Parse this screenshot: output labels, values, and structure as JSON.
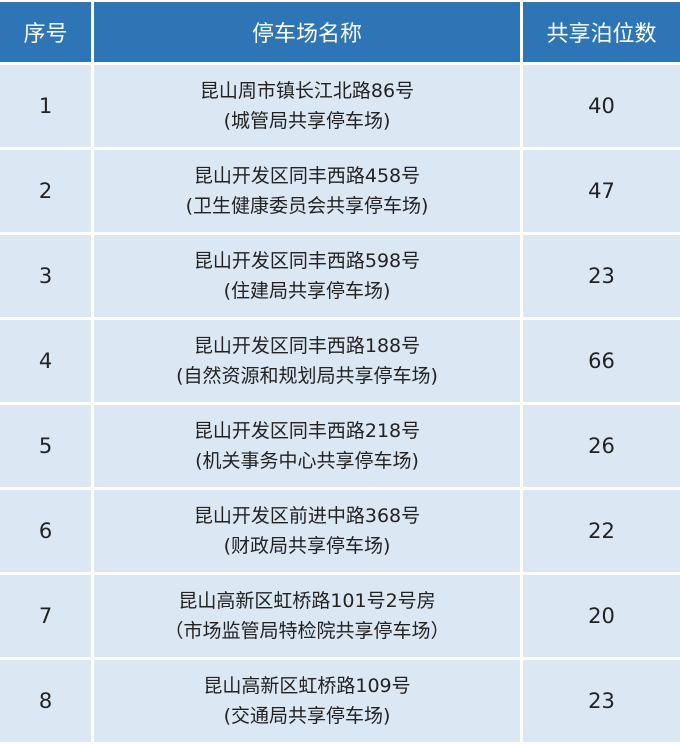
{
  "header": {
    "index": "序号",
    "name": "停车场名称",
    "spaces": "共享泊位数"
  },
  "rows": [
    {
      "index": "1",
      "address": "昆山周市镇长江北路86号",
      "facility": "(城管局共享停车场)",
      "spaces": "40"
    },
    {
      "index": "2",
      "address": "昆山开发区同丰西路458号",
      "facility": "(卫生健康委员会共享停车场)",
      "spaces": "47"
    },
    {
      "index": "3",
      "address": "昆山开发区同丰西路598号",
      "facility": "(住建局共享停车场)",
      "spaces": "23"
    },
    {
      "index": "4",
      "address": "昆山开发区同丰西路188号",
      "facility": "(自然资源和规划局共享停车场)",
      "spaces": "66"
    },
    {
      "index": "5",
      "address": "昆山开发区同丰西路218号",
      "facility": "(机关事务中心共享停车场)",
      "spaces": "26"
    },
    {
      "index": "6",
      "address": "昆山开发区前进中路368号",
      "facility": "(财政局共享停车场)",
      "spaces": "22"
    },
    {
      "index": "7",
      "address": "昆山高新区虹桥路101号2号房",
      "facility": "（市场监管局特检院共享停车场）",
      "spaces": "20"
    },
    {
      "index": "8",
      "address": "昆山高新区虹桥路109号",
      "facility": "(交通局共享停车场)",
      "spaces": "23"
    }
  ],
  "colors": {
    "header_bg": "#2e75b6",
    "row_bg": "#dce7f4"
  }
}
